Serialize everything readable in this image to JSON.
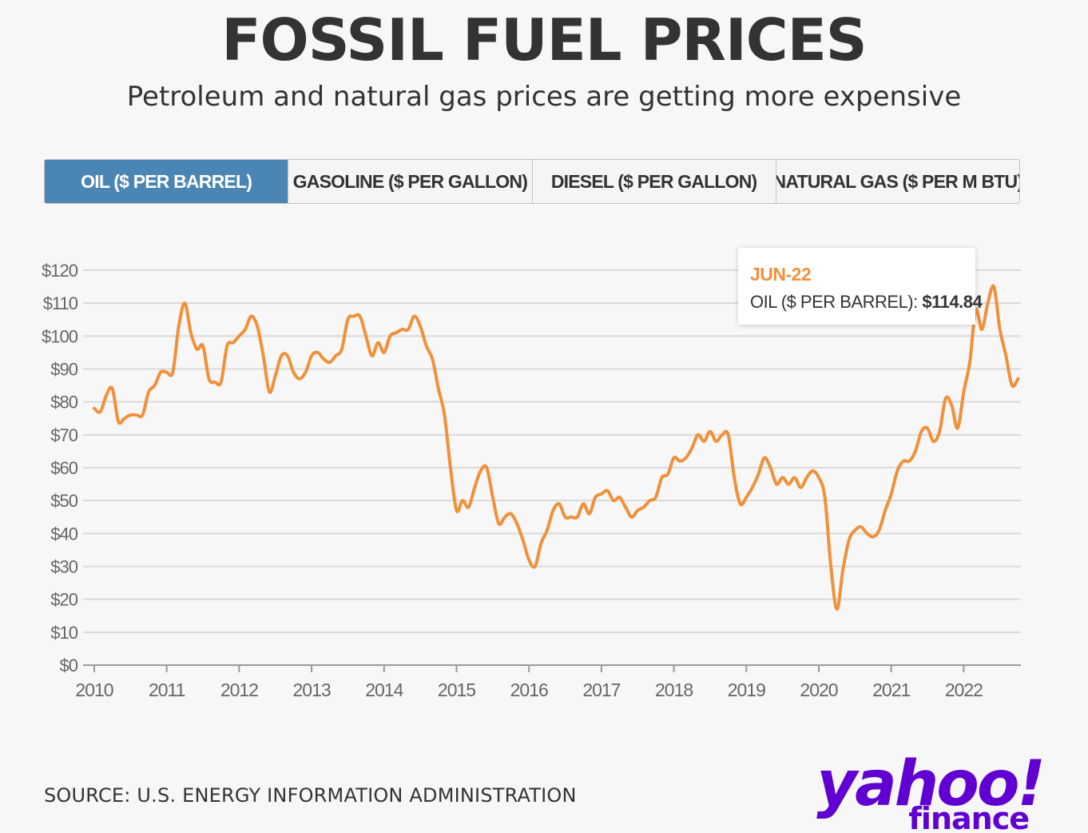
{
  "title": "FOSSIL FUEL PRICES",
  "subtitle": "Petroleum and natural gas prices are getting more expensive",
  "tabs": [
    {
      "label": "OIL ($ PER BARREL)",
      "active": true
    },
    {
      "label": "GASOLINE ($ PER GALLON)",
      "active": false
    },
    {
      "label": "DIESEL ($ PER GALLON)",
      "active": false
    },
    {
      "label": "NATURAL GAS ($ PER M BTU)",
      "active": false
    }
  ],
  "tooltip": {
    "date": "JUN-22",
    "series_label": "OIL ($ PER BARREL):",
    "value": "$114.84"
  },
  "source": "SOURCE: U.S. ENERGY INFORMATION ADMINISTRATION",
  "logo": {
    "main": "yahoo!",
    "sub": "finance",
    "color": "#6001d2"
  },
  "colors": {
    "line": "#f0913a",
    "active_tab": "#4b85b3",
    "grid": "#d9d9d9",
    "axis_text": "#666666"
  },
  "chart_data": {
    "type": "line",
    "title": "FOSSIL FUEL PRICES",
    "series": [
      {
        "name": "OIL ($ PER BARREL)",
        "x_start": 2010.0,
        "x_step": 0.0833333,
        "values": [
          78,
          77,
          82,
          84,
          74,
          75,
          76,
          76,
          76,
          83,
          85,
          89,
          89,
          89,
          103,
          110,
          101,
          96,
          97,
          87,
          86,
          86,
          97,
          98,
          100,
          102,
          106,
          103,
          94,
          83,
          88,
          94,
          94,
          89,
          87,
          89,
          94,
          95,
          93,
          92,
          94,
          96,
          105,
          106,
          106,
          100,
          94,
          98,
          95,
          100,
          101,
          102,
          102,
          106,
          103,
          97,
          93,
          84,
          76,
          60,
          47,
          50,
          48,
          54,
          59,
          60,
          51,
          43,
          45,
          46,
          43,
          38,
          32,
          30,
          37,
          41,
          47,
          49,
          45,
          45,
          45,
          49,
          46,
          51,
          52,
          53,
          50,
          51,
          48,
          45,
          47,
          48,
          50,
          51,
          57,
          58,
          63,
          62,
          63,
          66,
          70,
          68,
          71,
          68,
          70,
          70,
          57,
          49,
          51,
          54,
          58,
          63,
          60,
          55,
          57,
          55,
          57,
          54,
          57,
          59,
          57,
          51,
          30,
          17,
          29,
          38,
          41,
          42,
          40,
          39,
          41,
          47,
          52,
          59,
          62,
          62,
          65,
          71,
          72,
          68,
          71,
          81,
          79,
          72,
          83,
          92,
          108,
          102,
          110,
          115,
          102,
          94,
          85,
          87
        ]
      }
    ],
    "xlabel": "",
    "ylabel": "",
    "xlim": [
      2010,
      2022.8
    ],
    "ylim": [
      0,
      120
    ],
    "x_ticks": [
      2010,
      2011,
      2012,
      2013,
      2014,
      2015,
      2016,
      2017,
      2018,
      2019,
      2020,
      2021,
      2022
    ],
    "x_tick_labels": [
      "2010",
      "2011",
      "2012",
      "2013",
      "2014",
      "2015",
      "2016",
      "2017",
      "2018",
      "2019",
      "2020",
      "2021",
      "2022"
    ],
    "y_ticks": [
      0,
      10,
      20,
      30,
      40,
      50,
      60,
      70,
      80,
      90,
      100,
      110,
      120
    ],
    "y_tick_labels": [
      "$0",
      "$10",
      "$20",
      "$30",
      "$40",
      "$50",
      "$60",
      "$70",
      "$80",
      "$90",
      "$100",
      "$110",
      "$120"
    ],
    "grid": true,
    "legend": "none"
  }
}
